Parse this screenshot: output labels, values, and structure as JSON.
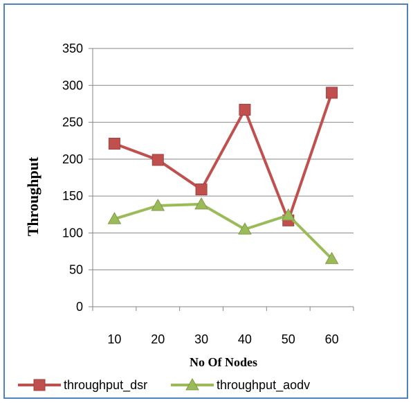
{
  "chart_data": {
    "type": "line",
    "title": "",
    "xlabel": "No Of Nodes",
    "ylabel": "Throughput",
    "categories": [
      "10",
      "20",
      "30",
      "40",
      "50",
      "60"
    ],
    "yticks": [
      "0",
      "50",
      "100",
      "150",
      "200",
      "250",
      "300",
      "350"
    ],
    "ylim": [
      0,
      350
    ],
    "grid": true,
    "legend_position": "bottom",
    "series": [
      {
        "name": "throughput_dsr",
        "values": [
          221,
          199,
          159,
          267,
          117,
          290
        ],
        "color": "#c0504d",
        "marker": "square"
      },
      {
        "name": "throughput_aodv",
        "values": [
          119,
          137,
          139,
          105,
          124,
          65
        ],
        "color": "#9bbb59",
        "marker": "triangle"
      }
    ]
  },
  "border_color": "#4f81bd"
}
